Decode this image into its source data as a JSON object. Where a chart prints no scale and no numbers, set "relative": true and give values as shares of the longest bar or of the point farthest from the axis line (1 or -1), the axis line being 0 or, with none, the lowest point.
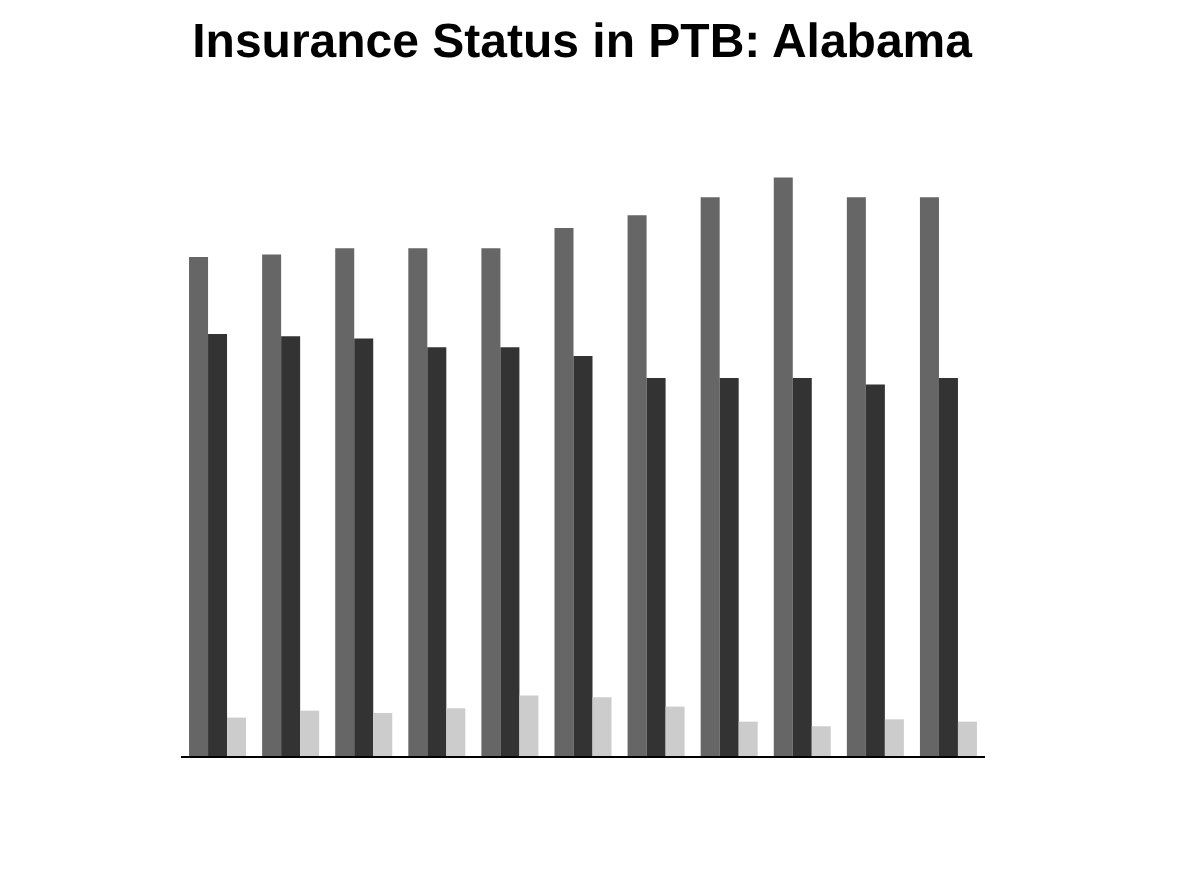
{
  "chart_data": {
    "type": "bar",
    "title": "Insurance Status in PTB: Alabama",
    "relative": true,
    "categories": [
      null,
      null,
      null,
      null,
      null,
      null,
      null,
      null,
      null,
      null,
      null
    ],
    "series": [
      {
        "color": "#666666",
        "values": [
          0.863,
          0.867,
          0.878,
          0.878,
          0.878,
          0.913,
          0.935,
          0.966,
          1,
          0.966,
          0.966
        ]
      },
      {
        "color": "#333333",
        "values": [
          0.73,
          0.726,
          0.722,
          0.707,
          0.707,
          0.692,
          0.654,
          0.654,
          0.654,
          0.643,
          0.654
        ]
      },
      {
        "color": "#cccccc",
        "values": [
          0.068,
          0.08,
          0.076,
          0.084,
          0.106,
          0.103,
          0.087,
          0.061,
          0.053,
          0.065,
          0.061
        ]
      }
    ]
  }
}
